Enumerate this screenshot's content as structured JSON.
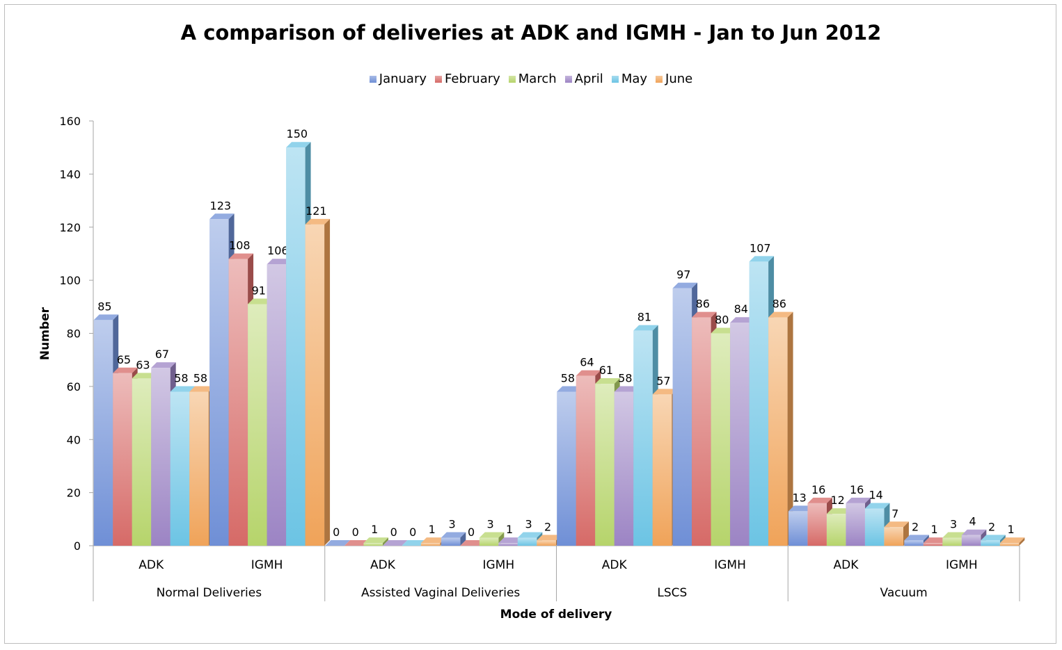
{
  "chart_data": {
    "type": "bar",
    "title": "A comparison of deliveries at ADK and IGMH - Jan to Jun 2012",
    "xlabel": "Mode of delivery",
    "ylabel": "Number",
    "ylim": [
      0,
      160
    ],
    "yticks": [
      0,
      20,
      40,
      60,
      80,
      100,
      120,
      140,
      160
    ],
    "grid": false,
    "legend_position": "top",
    "groups": [
      {
        "label": "Normal Deliveries",
        "categories": [
          "ADK",
          "IGMH"
        ]
      },
      {
        "label": "Assisted Vaginal Deliveries",
        "categories": [
          "ADK",
          "IGMH"
        ]
      },
      {
        "label": "LSCS",
        "categories": [
          "ADK",
          "IGMH"
        ]
      },
      {
        "label": "Vacuum",
        "categories": [
          "ADK",
          "IGMH"
        ]
      }
    ],
    "series": [
      {
        "name": "January",
        "color": "#6f8fd6",
        "values": [
          85,
          123,
          0,
          3,
          58,
          97,
          13,
          2
        ]
      },
      {
        "name": "February",
        "color": "#d66a67",
        "values": [
          65,
          108,
          0,
          0,
          64,
          86,
          16,
          1
        ]
      },
      {
        "name": "March",
        "color": "#b6d46b",
        "values": [
          63,
          91,
          1,
          3,
          61,
          80,
          12,
          3
        ]
      },
      {
        "name": "April",
        "color": "#9c84c4",
        "values": [
          67,
          106,
          0,
          1,
          58,
          84,
          16,
          4
        ]
      },
      {
        "name": "May",
        "color": "#6cc4e4",
        "values": [
          58,
          150,
          0,
          3,
          81,
          107,
          14,
          2
        ]
      },
      {
        "name": "June",
        "color": "#f0a359",
        "values": [
          58,
          121,
          1,
          2,
          57,
          86,
          7,
          1
        ]
      }
    ]
  }
}
